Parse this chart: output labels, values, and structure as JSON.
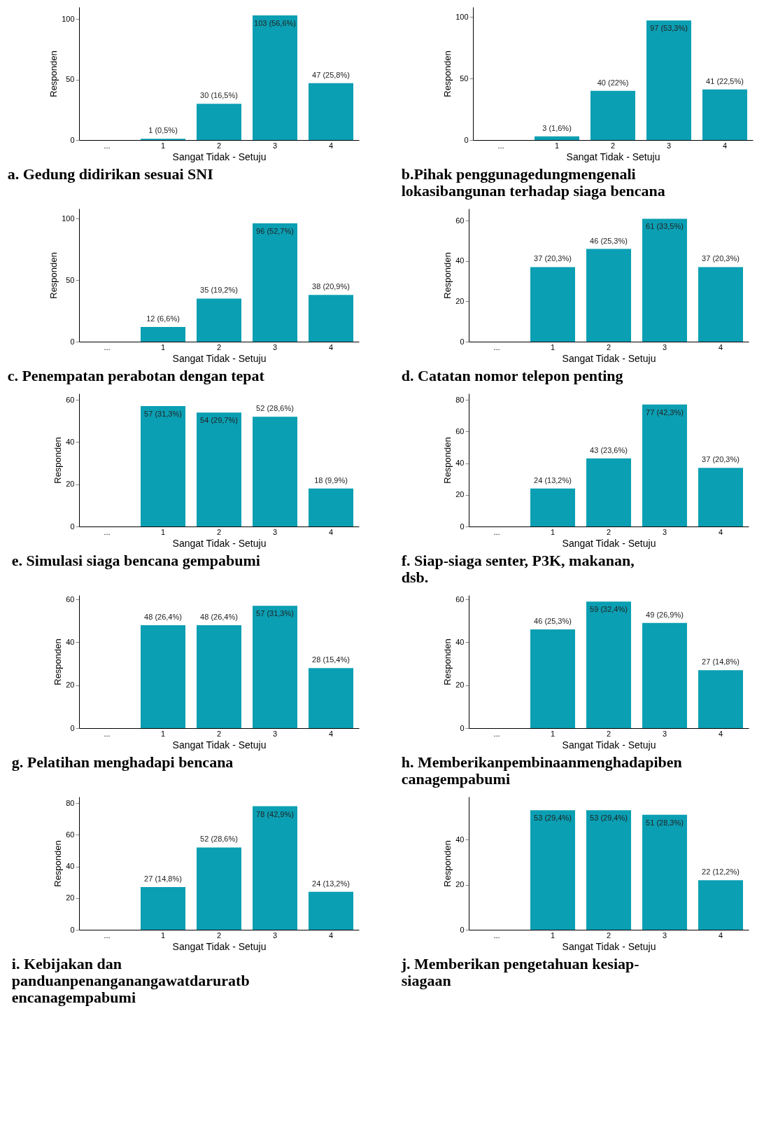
{
  "chart_data": [
    {
      "type": "bar",
      "title": "a. Gedung didirikan sesuai SNI",
      "xlabel": "Sangat Tidak - Setuju",
      "ylabel": "Responden",
      "categories": [
        "...",
        "1",
        "2",
        "3",
        "4"
      ],
      "values": [
        null,
        1,
        30,
        103,
        47
      ],
      "value_labels": [
        null,
        "1 (0,5%)",
        "30 (16,5%)",
        "103 (56,6%)",
        "47 (25,8%)"
      ],
      "color": "#0b9fb3",
      "ylim": [
        0,
        110
      ],
      "yticks": [
        0,
        50,
        100
      ],
      "grid": false
    },
    {
      "type": "bar",
      "title": "b.Pihak penggunagedungmengenali lokasibangunan terhadap siaga bencana",
      "xlabel": "Sangat Tidak - Setuju",
      "ylabel": "Responden",
      "categories": [
        "...",
        "1",
        "2",
        "3",
        "4"
      ],
      "values": [
        null,
        3,
        40,
        97,
        41
      ],
      "value_labels": [
        null,
        "3 (1,6%)",
        "40 (22%)",
        "97 (53,3%)",
        "41 (22,5%)"
      ],
      "color": "#0b9fb3",
      "ylim": [
        0,
        108
      ],
      "yticks": [
        0,
        50,
        100
      ],
      "grid": false
    },
    {
      "type": "bar",
      "title": "c. Penempatan perabotan dengan tepat",
      "xlabel": "Sangat Tidak - Setuju",
      "ylabel": "Responden",
      "categories": [
        "...",
        "1",
        "2",
        "3",
        "4"
      ],
      "values": [
        null,
        12,
        35,
        96,
        38
      ],
      "value_labels": [
        null,
        "12 (6,6%)",
        "35 (19,2%)",
        "96 (52,7%)",
        "38 (20,9%)"
      ],
      "color": "#0b9fb3",
      "ylim": [
        0,
        108
      ],
      "yticks": [
        0,
        50,
        100
      ],
      "grid": false
    },
    {
      "type": "bar",
      "title": "d. Catatan nomor telepon penting",
      "xlabel": "Sangat Tidak - Setuju",
      "ylabel": "Responden",
      "categories": [
        "...",
        "1",
        "2",
        "3",
        "4"
      ],
      "values": [
        null,
        37,
        46,
        61,
        37
      ],
      "value_labels": [
        null,
        "37 (20,3%)",
        "46 (25,3%)",
        "61 (33,5%)",
        "37 (20,3%)"
      ],
      "color": "#0b9fb3",
      "ylim": [
        0,
        66
      ],
      "yticks": [
        0,
        20,
        40,
        60
      ],
      "grid": false
    },
    {
      "type": "bar",
      "title": "e. Simulasi siaga bencana gempabumi",
      "xlabel": "Sangat Tidak - Setuju",
      "ylabel": "Responden",
      "categories": [
        "...",
        "1",
        "2",
        "3",
        "4"
      ],
      "values": [
        null,
        57,
        54,
        52,
        18
      ],
      "value_labels": [
        null,
        "57 (31,3%)",
        "54 (29,7%)",
        "52 (28,6%)",
        "18 (9,9%)"
      ],
      "color": "#0b9fb3",
      "ylim": [
        0,
        63
      ],
      "yticks": [
        0,
        20,
        40,
        60
      ],
      "grid": false
    },
    {
      "type": "bar",
      "title": "f. Siap-siaga senter, P3K, makanan, dsb.",
      "xlabel": "Sangat Tidak - Setuju",
      "ylabel": "Responden",
      "categories": [
        "...",
        "1",
        "2",
        "3",
        "4"
      ],
      "values": [
        null,
        24,
        43,
        77,
        37
      ],
      "value_labels": [
        null,
        "24 (13,2%)",
        "43 (23,6%)",
        "77 (42,3%)",
        "37 (20,3%)"
      ],
      "color": "#0b9fb3",
      "ylim": [
        0,
        84
      ],
      "yticks": [
        0,
        20,
        40,
        60,
        80
      ],
      "grid": false
    },
    {
      "type": "bar",
      "title": "g. Pelatihan menghadapi bencana",
      "xlabel": "Sangat Tidak - Setuju",
      "ylabel": "Responden",
      "categories": [
        "...",
        "1",
        "2",
        "3",
        "4"
      ],
      "values": [
        null,
        48,
        48,
        57,
        28
      ],
      "value_labels": [
        null,
        "48 (26,4%)",
        "48 (26,4%)",
        "57 (31,3%)",
        "28 (15,4%)"
      ],
      "color": "#0b9fb3",
      "ylim": [
        0,
        62
      ],
      "yticks": [
        0,
        20,
        40,
        60
      ],
      "grid": false
    },
    {
      "type": "bar",
      "title": "h. Memberikanpembinaanmenghadapiben canagempabumi",
      "xlabel": "Sangat Tidak - Setuju",
      "ylabel": "Responden",
      "categories": [
        "...",
        "1",
        "2",
        "3",
        "4"
      ],
      "values": [
        null,
        46,
        59,
        49,
        27
      ],
      "value_labels": [
        null,
        "46 (25,3%)",
        "59 (32,4%)",
        "49 (26,9%)",
        "27 (14,8%)"
      ],
      "color": "#0b9fb3",
      "ylim": [
        0,
        62
      ],
      "yticks": [
        0,
        20,
        40,
        60
      ],
      "grid": false
    },
    {
      "type": "bar",
      "title": "i. Kebijakan dan panduanpenanganangawatdaruratb encanagempabumi",
      "xlabel": "Sangat Tidak - Setuju",
      "ylabel": "Responden",
      "categories": [
        "...",
        "1",
        "2",
        "3",
        "4"
      ],
      "values": [
        null,
        27,
        52,
        78,
        24
      ],
      "value_labels": [
        null,
        "27 (14,8%)",
        "52 (28,6%)",
        "78 (42,9%)",
        "24 (13,2%)"
      ],
      "color": "#0b9fb3",
      "ylim": [
        0,
        84
      ],
      "yticks": [
        0,
        20,
        40,
        60,
        80
      ],
      "grid": false
    },
    {
      "type": "bar",
      "title": "j. Memberikan pengetahuan kesiap-siagaan",
      "xlabel": "Sangat Tidak - Setuju",
      "ylabel": "Responden",
      "categories": [
        "...",
        "1",
        "2",
        "3",
        "4"
      ],
      "values": [
        null,
        53,
        53,
        51,
        22
      ],
      "value_labels": [
        null,
        "53 (29,4%)",
        "53 (29,4%)",
        "51 (28,3%)",
        "22 (12,2%)"
      ],
      "color": "#0b9fb3",
      "ylim": [
        0,
        59
      ],
      "yticks": [
        0,
        20,
        40
      ],
      "grid": false
    }
  ]
}
